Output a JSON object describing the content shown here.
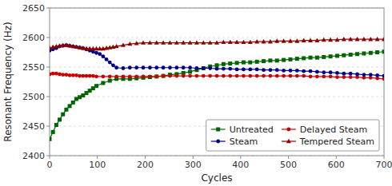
{
  "chart_data": {
    "type": "line",
    "xlabel": "Cycles",
    "ylabel": "Resonant Frequency (Hz)",
    "xlim": [
      0,
      700
    ],
    "ylim": [
      2400,
      2650
    ],
    "xticks": [
      0,
      100,
      200,
      300,
      400,
      500,
      600,
      700
    ],
    "yticks": [
      2400,
      2450,
      2500,
      2550,
      2600,
      2650
    ],
    "grid": true,
    "legend": "lower right",
    "series": [
      {
        "name": "Untreated",
        "color": "#006400",
        "marker": "square",
        "line_style": "solid",
        "x": [
          0,
          7,
          14,
          21,
          28,
          35,
          42,
          49,
          56,
          63,
          70,
          77,
          84,
          91,
          98,
          112,
          126,
          140,
          154,
          168,
          182,
          196,
          210,
          224,
          238,
          252,
          266,
          280,
          294,
          308,
          322,
          336,
          350,
          364,
          378,
          392,
          406,
          420,
          434,
          448,
          462,
          476,
          490,
          504,
          518,
          532,
          546,
          560,
          574,
          588,
          602,
          616,
          630,
          644,
          658,
          672,
          686,
          700
        ],
        "values": [
          2428,
          2440,
          2452,
          2461,
          2470,
          2478,
          2484,
          2490,
          2496,
          2499,
          2502,
          2506,
          2510,
          2514,
          2518,
          2523,
          2527,
          2530,
          2530,
          2530,
          2531,
          2532,
          2533,
          2534,
          2535,
          2537,
          2538,
          2540,
          2542,
          2545,
          2548,
          2551,
          2553,
          2555,
          2556,
          2557,
          2558,
          2558,
          2559,
          2560,
          2561,
          2561,
          2562,
          2563,
          2564,
          2565,
          2566,
          2566,
          2567,
          2568,
          2569,
          2570,
          2571,
          2572,
          2573,
          2574,
          2575,
          2576
        ]
      },
      {
        "name": "Delayed Steam",
        "color": "#CC0000",
        "marker": "circle",
        "line_style": "solid",
        "x": [
          0,
          7,
          14,
          21,
          28,
          35,
          42,
          49,
          56,
          63,
          70,
          77,
          84,
          91,
          98,
          112,
          126,
          140,
          154,
          168,
          182,
          196,
          210,
          224,
          238,
          252,
          266,
          280,
          294,
          308,
          322,
          336,
          350,
          364,
          378,
          392,
          406,
          420,
          434,
          448,
          462,
          476,
          490,
          504,
          518,
          532,
          546,
          560,
          574,
          588,
          602,
          616,
          630,
          644,
          658,
          672,
          686,
          700
        ],
        "values": [
          2538,
          2539,
          2539,
          2538,
          2537,
          2537,
          2536,
          2536,
          2536,
          2535,
          2535,
          2535,
          2535,
          2535,
          2534,
          2534,
          2534,
          2534,
          2534,
          2534,
          2534,
          2534,
          2534,
          2534,
          2535,
          2535,
          2535,
          2535,
          2535,
          2535,
          2535,
          2535,
          2535,
          2535,
          2535,
          2535,
          2535,
          2535,
          2535,
          2535,
          2535,
          2535,
          2535,
          2535,
          2535,
          2535,
          2534,
          2534,
          2534,
          2534,
          2533,
          2533,
          2533,
          2533,
          2532,
          2532,
          2531,
          2530
        ]
      },
      {
        "name": "Steam",
        "color": "#00008B",
        "marker": "circle",
        "line_style": "solid",
        "x": [
          0,
          7,
          14,
          21,
          28,
          35,
          42,
          49,
          56,
          63,
          70,
          77,
          84,
          91,
          98,
          105,
          112,
          119,
          126,
          133,
          140,
          154,
          168,
          182,
          196,
          210,
          224,
          238,
          252,
          266,
          280,
          294,
          308,
          322,
          336,
          350,
          364,
          378,
          392,
          406,
          420,
          434,
          448,
          462,
          476,
          490,
          504,
          518,
          532,
          546,
          560,
          574,
          588,
          602,
          616,
          630,
          644,
          658,
          672,
          686,
          700
        ],
        "values": [
          2578,
          2580,
          2582,
          2585,
          2586,
          2587,
          2586,
          2585,
          2584,
          2583,
          2582,
          2580,
          2578,
          2576,
          2574,
          2572,
          2568,
          2563,
          2558,
          2553,
          2549,
          2548,
          2549,
          2549,
          2549,
          2549,
          2549,
          2549,
          2549,
          2549,
          2549,
          2549,
          2548,
          2548,
          2548,
          2547,
          2547,
          2547,
          2546,
          2546,
          2546,
          2546,
          2545,
          2545,
          2545,
          2544,
          2544,
          2544,
          2543,
          2543,
          2542,
          2541,
          2541,
          2540,
          2539,
          2539,
          2538,
          2537,
          2537,
          2536,
          2535
        ]
      },
      {
        "name": "Tempered Steam",
        "color": "#8B0000",
        "marker": "triangle",
        "line_style": "solid",
        "x": [
          0,
          7,
          14,
          21,
          28,
          35,
          42,
          49,
          56,
          63,
          70,
          77,
          84,
          91,
          98,
          105,
          112,
          119,
          126,
          133,
          140,
          154,
          168,
          182,
          196,
          210,
          224,
          238,
          252,
          266,
          280,
          294,
          308,
          322,
          336,
          350,
          364,
          378,
          392,
          406,
          420,
          434,
          448,
          462,
          476,
          490,
          504,
          518,
          532,
          546,
          560,
          574,
          588,
          602,
          616,
          630,
          644,
          658,
          672,
          686,
          700
        ],
        "values": [
          2582,
          2584,
          2585,
          2586,
          2587,
          2587,
          2586,
          2585,
          2584,
          2583,
          2582,
          2581,
          2581,
          2581,
          2581,
          2581,
          2581,
          2582,
          2583,
          2584,
          2585,
          2587,
          2589,
          2590,
          2591,
          2591,
          2591,
          2591,
          2591,
          2591,
          2591,
          2591,
          2591,
          2591,
          2591,
          2591,
          2592,
          2592,
          2592,
          2592,
          2592,
          2593,
          2593,
          2593,
          2594,
          2594,
          2594,
          2594,
          2595,
          2595,
          2595,
          2596,
          2596,
          2596,
          2597,
          2597,
          2597,
          2597,
          2597,
          2597,
          2597
        ]
      }
    ]
  }
}
